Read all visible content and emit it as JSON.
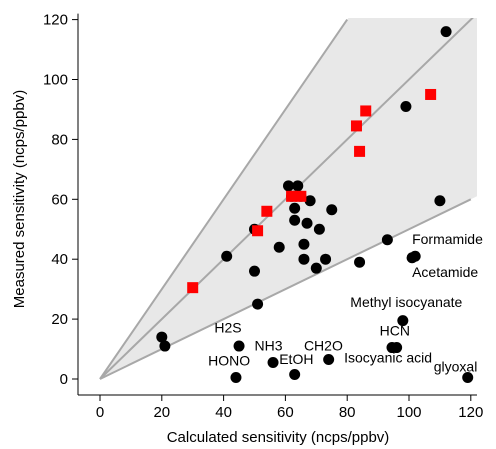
{
  "chart_data": {
    "type": "scatter",
    "xlabel": "Calculated sensitivity (ncps/ppbv)",
    "ylabel": "Measured sensitivity (ncps/ppbv)",
    "xlim": [
      -5,
      122
    ],
    "ylim": [
      -4,
      122
    ],
    "xticks": [
      0,
      20,
      40,
      60,
      80,
      100,
      120
    ],
    "yticks": [
      0,
      20,
      40,
      60,
      80,
      100,
      120
    ],
    "reference_lines": [
      {
        "slope": 1.0,
        "from": [
          0,
          0
        ],
        "to": [
          122,
          122
        ]
      },
      {
        "slope": 0.5,
        "from": [
          0,
          0
        ],
        "to": [
          120,
          60
        ]
      },
      {
        "slope": 1.5,
        "from": [
          0,
          0
        ],
        "to": [
          80,
          120
        ]
      }
    ],
    "shaded_band": {
      "between_slopes": [
        0.5,
        1.5
      ]
    },
    "series": [
      {
        "marker": "circle",
        "color": "#000000",
        "points": [
          [
            20,
            14
          ],
          [
            21,
            11
          ],
          [
            41,
            41
          ],
          [
            44,
            0.5
          ],
          [
            45,
            11
          ],
          [
            50,
            36
          ],
          [
            50,
            50
          ],
          [
            51,
            25
          ],
          [
            56,
            5.5
          ],
          [
            58,
            44
          ],
          [
            61,
            64.5
          ],
          [
            62,
            61
          ],
          [
            63,
            1.5
          ],
          [
            63,
            57
          ],
          [
            63,
            53
          ],
          [
            64,
            64.5
          ],
          [
            65,
            61
          ],
          [
            66,
            40
          ],
          [
            66,
            45
          ],
          [
            67,
            52
          ],
          [
            68,
            59.5
          ],
          [
            70,
            37
          ],
          [
            71,
            50
          ],
          [
            73,
            40
          ],
          [
            74,
            6.5
          ],
          [
            75,
            56.5
          ],
          [
            84,
            39
          ],
          [
            93,
            46.5
          ],
          [
            94.5,
            10.5
          ],
          [
            96,
            10.5
          ],
          [
            98,
            19.5
          ],
          [
            99,
            91
          ],
          [
            101,
            40.5
          ],
          [
            102,
            41
          ],
          [
            110,
            59.5
          ],
          [
            112,
            116
          ],
          [
            119,
            0.5
          ]
        ]
      },
      {
        "marker": "square",
        "color": "#ff0000",
        "points": [
          [
            30,
            30.5
          ],
          [
            51,
            49.5
          ],
          [
            54,
            56
          ],
          [
            62,
            61
          ],
          [
            65,
            61
          ],
          [
            83,
            84.5
          ],
          [
            84,
            76
          ],
          [
            86,
            89.5
          ],
          [
            107,
            95
          ]
        ]
      }
    ],
    "annotations": [
      {
        "text": "Formamide",
        "x": 101,
        "y": 45
      },
      {
        "text": "Acetamide",
        "x": 101,
        "y": 34
      },
      {
        "text": "Methyl isocyanate",
        "x": 81,
        "y": 24
      },
      {
        "text": "H2S",
        "x": 37,
        "y": 15.5
      },
      {
        "text": "HCN",
        "x": 90.5,
        "y": 14.5
      },
      {
        "text": "CH2O",
        "x": 66,
        "y": 9.5
      },
      {
        "text": "NH3",
        "x": 50,
        "y": 9.5
      },
      {
        "text": "Isocyanic acid",
        "x": 79,
        "y": 5.5
      },
      {
        "text": "EtOH",
        "x": 58,
        "y": 5
      },
      {
        "text": "HONO",
        "x": 35,
        "y": 4.5
      },
      {
        "text": "glyoxal",
        "x": 108,
        "y": 2.5
      }
    ]
  }
}
